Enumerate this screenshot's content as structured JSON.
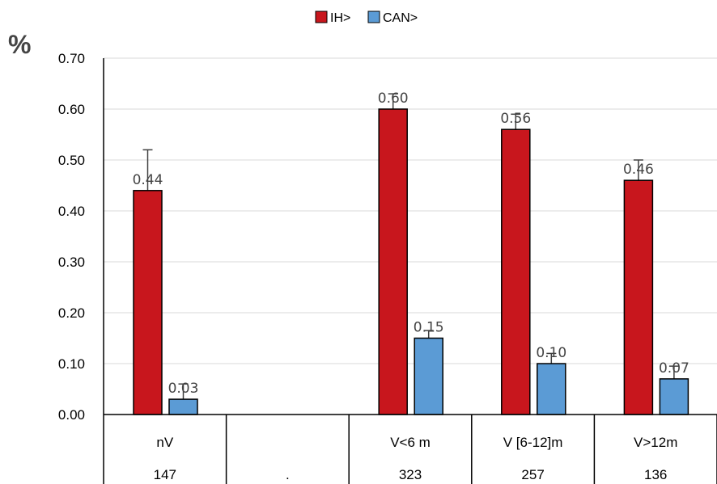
{
  "chart_data": {
    "type": "bar",
    "ylabel": "%",
    "ylim": [
      0,
      0.7
    ],
    "yticks": [
      "0.00",
      "0.10",
      "0.20",
      "0.30",
      "0.40",
      "0.50",
      "0.60",
      "0.70"
    ],
    "grid": true,
    "legend_position": "top-center",
    "categories": [
      "nV",
      "",
      "V<6 m",
      "V [6-12]m",
      "V>12m"
    ],
    "counts": [
      "147",
      ".",
      "323",
      "257",
      "136"
    ],
    "series": [
      {
        "name": "IH>",
        "color": "#c8161d",
        "values": [
          0.44,
          null,
          0.6,
          0.56,
          0.46
        ],
        "labels": [
          "0.44",
          "",
          "0.60",
          "0.56",
          "0.46"
        ],
        "error_upper": [
          0.52,
          null,
          0.63,
          0.59,
          0.5
        ]
      },
      {
        "name": "CAN>",
        "color": "#5b9bd5",
        "values": [
          0.03,
          null,
          0.15,
          0.1,
          0.07
        ],
        "labels": [
          "0.03",
          "",
          "0.15",
          "0.10",
          "0.07"
        ],
        "error_upper": [
          0.06,
          null,
          0.165,
          0.12,
          0.095
        ]
      }
    ]
  }
}
